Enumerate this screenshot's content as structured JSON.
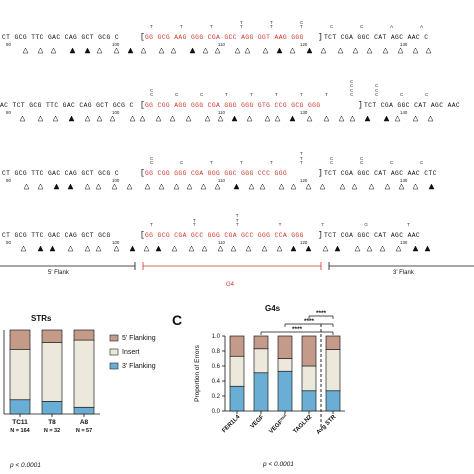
{
  "sequence_rows": [
    {
      "left": "CT GCG TTC GAC CAG GCT GCG C",
      "g4": "GG GCG AAG GGG CGA GCC AGG GGT AAG GGG",
      "right": "TCT CGA GGC CAT AGC AAC C",
      "pos_start": "90",
      "pos_mid": "100",
      "pos_mid2": "110",
      "pos_mid3": "120",
      "pos_end": "130",
      "insert_top": [
        "T",
        "T",
        "T",
        "TT",
        "TT",
        "CT",
        "C",
        "C",
        "A",
        "A"
      ]
    },
    {
      "left": "AC TCT GCG TTC GAC CAG GCT GCG C",
      "g4": "GG CGG AGG GGG CGA GGG GGG GTG CCG GCG GGG",
      "right": "TCT CGA GGC CAT AGC AAC",
      "pos_start": "80",
      "pos_mid": "100",
      "pos_mid2": "110",
      "pos_mid3": "130",
      "pos_end": "140",
      "insert_top": [
        "CC",
        "C",
        "C",
        "T",
        "T",
        "T",
        "T",
        "T",
        "CCCC",
        "CCC",
        "C",
        "C"
      ]
    },
    {
      "left": "CT GCG TTC GAC CAG GCT GCG C",
      "g4": "GG CGG GGG CGA GGG GGC GGG CCC GGG",
      "right": "TCT CGA GGC CAT AGC AAC CTC",
      "pos_start": "90",
      "pos_mid": "100",
      "pos_mid2": "110",
      "pos_mid3": "120",
      "pos_end": "130",
      "insert_top": [
        "CC",
        "C",
        "T",
        "T",
        "T",
        "TTT",
        "CC",
        "CC",
        "C",
        "C"
      ]
    },
    {
      "left": "CT GCG TTC GAC CAG GCT GCG",
      "g4": "GG GCG CGA GCC GGG CGA GCC GGG CCA GGG",
      "right": "TCT CGA GGC CAT AGC AAC",
      "pos_start": "90",
      "pos_mid": "100",
      "pos_mid2": "110",
      "pos_mid3": "120",
      "pos_end": "130",
      "insert_top": [
        "T",
        "TT",
        "TTT",
        "T",
        "T",
        "G",
        "T"
      ]
    }
  ],
  "flanks": {
    "five": "5' Flank",
    "g4": "G4",
    "three": "3' Flank"
  },
  "panel_b": {
    "title": "STRs",
    "pvalue": "p < 0.0001",
    "chart_data": {
      "type": "bar",
      "stacked": true,
      "normalized": true,
      "ylim": [
        0,
        1
      ],
      "categories": [
        "TC11",
        "T8",
        "A8"
      ],
      "category_n": [
        "N = 164",
        "N = 32",
        "N = 57"
      ],
      "series": [
        {
          "name": "3' Flanking",
          "color": "#6aaed6",
          "values": [
            0.17,
            0.15,
            0.08
          ]
        },
        {
          "name": "Insert",
          "color": "#ece8dc",
          "values": [
            0.6,
            0.7,
            0.8
          ]
        },
        {
          "name": "5' Flanking",
          "color": "#c49a88",
          "values": [
            0.23,
            0.15,
            0.12
          ]
        }
      ],
      "legend": [
        "5' Flanking",
        "Insert",
        "3' Flanking"
      ],
      "legend_colors": [
        "#c49a88",
        "#ece8dc",
        "#6aaed6"
      ],
      "legend_position": "right"
    }
  },
  "panel_c": {
    "letter": "C",
    "title": "G4s",
    "pvalue": "p < 0.0001",
    "sig_labels": [
      "****",
      "****",
      "****"
    ],
    "chart_data": {
      "type": "bar",
      "stacked": true,
      "normalized": true,
      "ylabel": "Proportion of Errors",
      "ylim": [
        0,
        1
      ],
      "yticks": [
        "0.0",
        "0.2",
        "0.4",
        "0.6",
        "0.8",
        "1.0"
      ],
      "categories": [
        "FER1L4",
        "VEGF",
        "VEGF",
        "TAGLN2",
        "Avg STR"
      ],
      "category_superscript": [
        "",
        "",
        "mut",
        "",
        ""
      ],
      "series": [
        {
          "name": "3' Flanking",
          "color": "#6aaed6",
          "values": [
            0.33,
            0.51,
            0.53,
            0.27,
            0.27
          ]
        },
        {
          "name": "Insert",
          "color": "#ece8dc",
          "values": [
            0.4,
            0.32,
            0.17,
            0.33,
            0.55
          ]
        },
        {
          "name": "5' Flanking",
          "color": "#c49a88",
          "values": [
            0.27,
            0.17,
            0.3,
            0.4,
            0.18
          ]
        }
      ]
    }
  }
}
